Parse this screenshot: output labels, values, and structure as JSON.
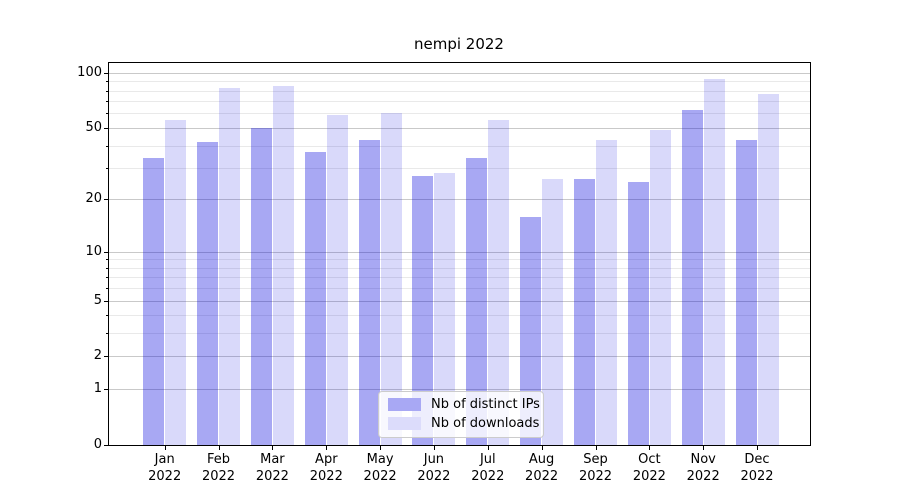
{
  "title": "nempi 2022",
  "chart_data": {
    "type": "bar",
    "title": "nempi 2022",
    "categories": [
      "Jan 2022",
      "Feb 2022",
      "Mar 2022",
      "Apr 2022",
      "May 2022",
      "Jun 2022",
      "Jul 2022",
      "Aug 2022",
      "Sep 2022",
      "Oct 2022",
      "Nov 2022",
      "Dec 2022"
    ],
    "month_labels": [
      "Jan",
      "Feb",
      "Mar",
      "Apr",
      "May",
      "Jun",
      "Jul",
      "Aug",
      "Sep",
      "Oct",
      "Nov",
      "Dec"
    ],
    "year_label": "2022",
    "series": [
      {
        "name": "Nb of distinct IPs",
        "color": "#a8a8f4",
        "fill": "rgba(0,0,220,0.34)",
        "values": [
          34,
          42,
          50,
          37,
          43,
          27,
          34,
          16,
          26,
          25,
          63,
          43
        ]
      },
      {
        "name": "Nb of downloads",
        "color": "#dcdcfb",
        "fill": "rgba(0,0,220,0.15)",
        "values": [
          55,
          83,
          85,
          59,
          60,
          28,
          55,
          26,
          43,
          49,
          93,
          77
        ]
      }
    ],
    "xlabel": "",
    "ylabel": "",
    "yscale": "log1p",
    "ylim": [
      0,
      113
    ],
    "yticks": [
      0,
      1,
      2,
      5,
      10,
      20,
      50,
      100
    ],
    "yticks_minor": [
      3,
      4,
      6,
      7,
      8,
      9,
      30,
      40,
      60,
      70,
      80,
      90
    ],
    "grid": true,
    "legend_position": "lower center"
  },
  "colors": {
    "grid_major": "#c9c9c9",
    "grid_minor": "#e9e9e9",
    "spine": "#000000",
    "text": "#000000",
    "legend_border": "#cccccc"
  }
}
